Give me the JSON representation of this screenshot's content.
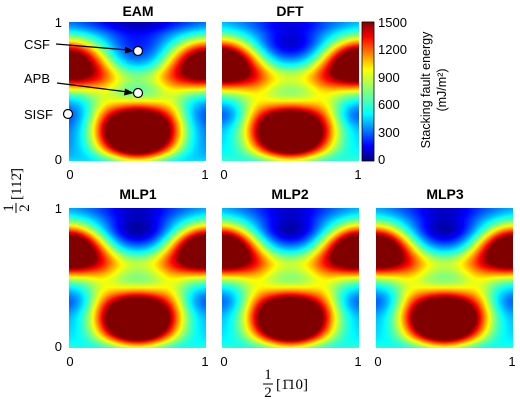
{
  "chart_data": {
    "type": "heatmap",
    "colorbar": {
      "label_line1": "Stacking fault energy",
      "label_line2": "(mJ/m²)",
      "ticks": [
        "1500",
        "1200",
        "900",
        "600",
        "300",
        "0"
      ],
      "range": [
        0,
        1500
      ],
      "colormap": "jet"
    },
    "axes": {
      "xlabel_frac": "1",
      "xlabel_frac_den": "2",
      "xlabel_vec": "[1̄10]",
      "ylabel_frac": "1",
      "ylabel_frac_den": "2",
      "ylabel_vec": "[112̄]",
      "xticks": [
        "0",
        "1"
      ],
      "yticks": [
        "0",
        "1"
      ],
      "xlim": [
        0,
        1
      ],
      "ylim": [
        0,
        1
      ]
    },
    "panels": [
      {
        "title": "EAM"
      },
      {
        "title": "DFT"
      },
      {
        "title": "MLP1"
      },
      {
        "title": "MLP2"
      },
      {
        "title": "MLP3"
      }
    ],
    "annotations": [
      {
        "label": "CSF",
        "x": 0.5,
        "y": 0.82
      },
      {
        "label": "APB",
        "x": 0.5,
        "y": 0.48
      },
      {
        "label": "SISF",
        "x": 0.0,
        "y": 0.33
      }
    ]
  }
}
